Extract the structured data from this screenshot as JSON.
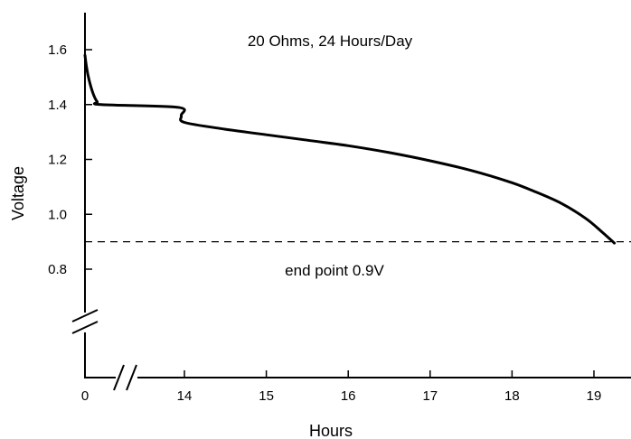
{
  "chart_data": {
    "type": "line",
    "title": "20 Ohms, 24 Hours/Day",
    "xlabel": "Hours",
    "ylabel": "Voltage",
    "x_ticks": [
      0,
      14,
      15,
      16,
      17,
      18,
      19
    ],
    "y_ticks": [
      0.8,
      1.0,
      1.2,
      1.4,
      1.6
    ],
    "y_tick_labels": [
      "0.8",
      "1.0",
      "1.2",
      "1.4",
      "1.6"
    ],
    "x_axis_break": true,
    "y_axis_break": true,
    "grid": false,
    "series": [
      {
        "x": [
          0,
          0.1,
          0.25,
          0.5,
          0.75,
          1.0,
          13.0,
          13.5,
          14.0,
          14.5,
          15.0,
          15.5,
          16.0,
          16.5,
          17.0,
          17.5,
          18.0,
          18.3,
          18.6,
          18.9,
          19.1,
          19.25
        ],
        "y": [
          1.58,
          1.535,
          1.49,
          1.44,
          1.41,
          1.4,
          1.39,
          1.36,
          1.335,
          1.31,
          1.29,
          1.27,
          1.25,
          1.225,
          1.195,
          1.16,
          1.115,
          1.08,
          1.04,
          0.985,
          0.935,
          0.895
        ]
      }
    ],
    "reference_line": {
      "y": 0.9,
      "label": "end point 0.9V"
    }
  }
}
